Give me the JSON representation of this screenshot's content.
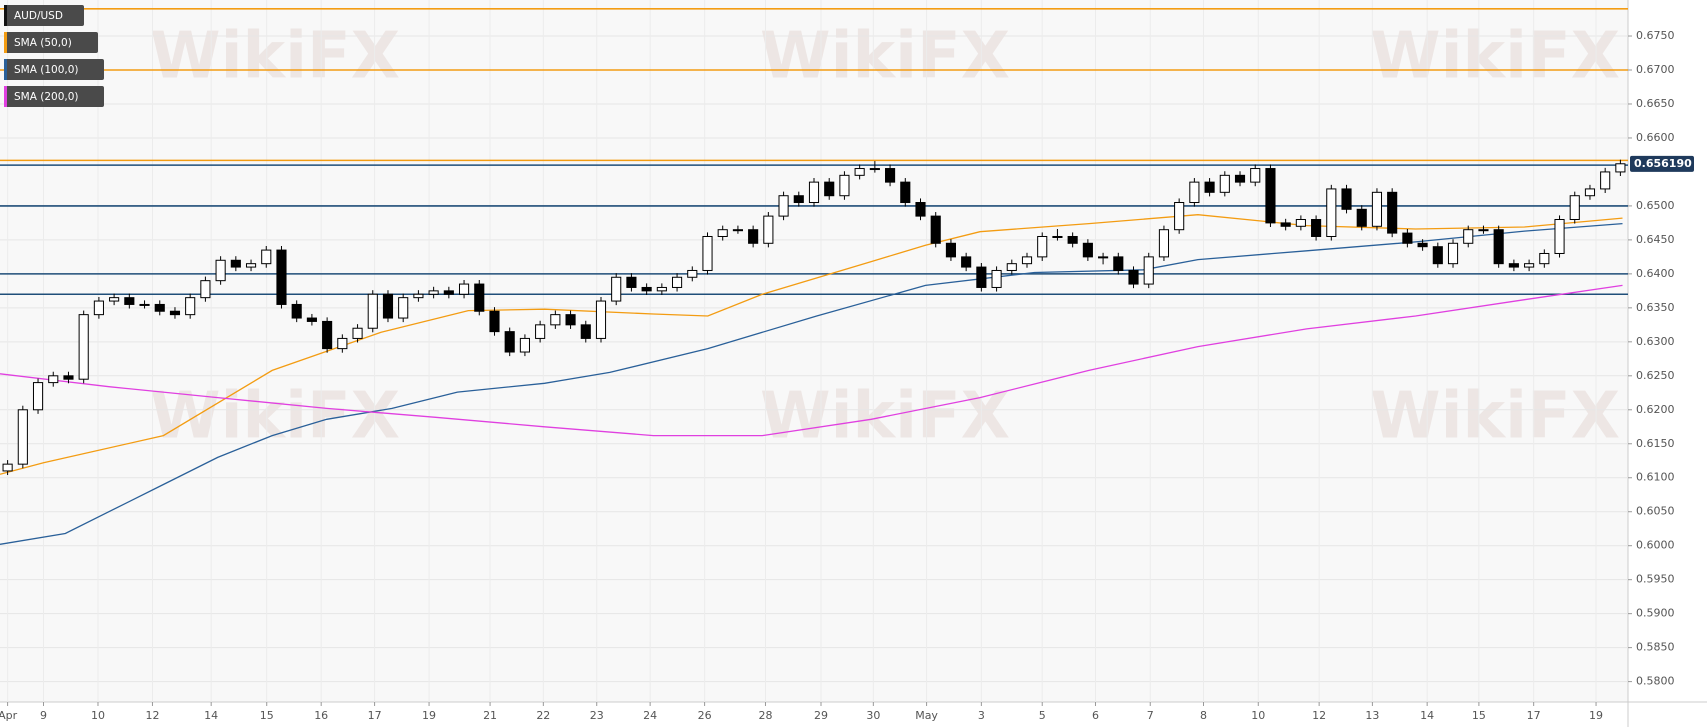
{
  "chart_data": {
    "type": "candlestick",
    "watermark": "WikiFX",
    "xlim": [
      -0.5,
      106.5
    ],
    "ylim": [
      0.577,
      0.6803
    ],
    "grid": true,
    "xticks": [
      {
        "value": 0,
        "label": "Apr"
      },
      {
        "value": 2.36,
        "label": "9"
      },
      {
        "value": 5.94,
        "label": "10"
      },
      {
        "value": 9.52,
        "label": "12"
      },
      {
        "value": 13.38,
        "label": "14"
      },
      {
        "value": 17.03,
        "label": "15"
      },
      {
        "value": 20.61,
        "label": "16"
      },
      {
        "value": 24.12,
        "label": "17"
      },
      {
        "value": 27.7,
        "label": "19"
      },
      {
        "value": 31.71,
        "label": "21"
      },
      {
        "value": 35.21,
        "label": "22"
      },
      {
        "value": 38.72,
        "label": "23"
      },
      {
        "value": 42.23,
        "label": "24"
      },
      {
        "value": 45.81,
        "label": "26"
      },
      {
        "value": 49.81,
        "label": "28"
      },
      {
        "value": 53.46,
        "label": "29"
      },
      {
        "value": 56.9,
        "label": "30"
      },
      {
        "value": 60.4,
        "label": "May"
      },
      {
        "value": 64.0,
        "label": "3"
      },
      {
        "value": 68.0,
        "label": "5"
      },
      {
        "value": 71.5,
        "label": "6"
      },
      {
        "value": 75.1,
        "label": "7"
      },
      {
        "value": 78.6,
        "label": "8"
      },
      {
        "value": 82.2,
        "label": "10"
      },
      {
        "value": 86.2,
        "label": "12"
      },
      {
        "value": 89.7,
        "label": "13"
      },
      {
        "value": 93.3,
        "label": "14"
      },
      {
        "value": 96.7,
        "label": "15"
      },
      {
        "value": 100.3,
        "label": "17"
      },
      {
        "value": 104.4,
        "label": "19"
      }
    ],
    "yticks": [
      {
        "value": 0.58,
        "label": "0.5800"
      },
      {
        "value": 0.585,
        "label": "0.5850"
      },
      {
        "value": 0.59,
        "label": "0.5900"
      },
      {
        "value": 0.595,
        "label": "0.5950"
      },
      {
        "value": 0.6,
        "label": "0.6000"
      },
      {
        "value": 0.605,
        "label": "0.6050"
      },
      {
        "value": 0.61,
        "label": "0.6100"
      },
      {
        "value": 0.615,
        "label": "0.6150"
      },
      {
        "value": 0.62,
        "label": "0.6200"
      },
      {
        "value": 0.625,
        "label": "0.6250"
      },
      {
        "value": 0.63,
        "label": "0.6300"
      },
      {
        "value": 0.635,
        "label": "0.6350"
      },
      {
        "value": 0.64,
        "label": "0.6400"
      },
      {
        "value": 0.645,
        "label": "0.6450"
      },
      {
        "value": 0.65,
        "label": "0.6500"
      },
      {
        "value": 0.66,
        "label": "0.6600"
      },
      {
        "value": 0.665,
        "label": "0.6650"
      },
      {
        "value": 0.67,
        "label": "0.6700"
      },
      {
        "value": 0.675,
        "label": "0.6750"
      }
    ],
    "levels": [
      {
        "value": 0.679,
        "color": "#f39c12"
      },
      {
        "value": 0.67,
        "color": "#f39c12"
      },
      {
        "value": 0.6567,
        "color": "#f39c12"
      },
      {
        "value": 0.656,
        "color": "#1f4e79"
      },
      {
        "value": 0.65,
        "color": "#1f4e79"
      },
      {
        "value": 0.64,
        "color": "#1f4e79"
      },
      {
        "value": 0.637,
        "color": "#1f4e79"
      }
    ],
    "last_price": {
      "value": 0.65619,
      "label": "0.656190"
    },
    "series": [
      {
        "name": "AUD/USD",
        "type": "candlestick",
        "color": "#000000",
        "ohlc": [
          [
            0.611,
            0.6126,
            0.6104,
            0.612
          ],
          [
            0.612,
            0.6206,
            0.6114,
            0.62
          ],
          [
            0.62,
            0.6246,
            0.6194,
            0.624
          ],
          [
            0.624,
            0.6256,
            0.6234,
            0.625
          ],
          [
            0.625,
            0.6256,
            0.6239,
            0.6245
          ],
          [
            0.6245,
            0.6346,
            0.6239,
            0.634
          ],
          [
            0.634,
            0.6366,
            0.6334,
            0.636
          ],
          [
            0.636,
            0.6371,
            0.6354,
            0.6365
          ],
          [
            0.6365,
            0.6371,
            0.6349,
            0.6355
          ],
          [
            0.6355,
            0.6361,
            0.6349,
            0.6355
          ],
          [
            0.6355,
            0.6361,
            0.6339,
            0.6345
          ],
          [
            0.6345,
            0.6351,
            0.6334,
            0.634
          ],
          [
            0.634,
            0.6371,
            0.6334,
            0.6365
          ],
          [
            0.6365,
            0.6396,
            0.6359,
            0.639
          ],
          [
            0.639,
            0.6426,
            0.6384,
            0.642
          ],
          [
            0.642,
            0.6426,
            0.6404,
            0.641
          ],
          [
            0.641,
            0.6421,
            0.6404,
            0.6415
          ],
          [
            0.6415,
            0.6441,
            0.6409,
            0.6435
          ],
          [
            0.6435,
            0.6441,
            0.6349,
            0.6355
          ],
          [
            0.6355,
            0.6361,
            0.6329,
            0.6335
          ],
          [
            0.6335,
            0.6341,
            0.6324,
            0.633
          ],
          [
            0.633,
            0.6336,
            0.6284,
            0.629
          ],
          [
            0.629,
            0.6311,
            0.6284,
            0.6305
          ],
          [
            0.6305,
            0.6326,
            0.6299,
            0.632
          ],
          [
            0.632,
            0.6376,
            0.6314,
            0.637
          ],
          [
            0.637,
            0.6376,
            0.6329,
            0.6335
          ],
          [
            0.6335,
            0.6371,
            0.6329,
            0.6365
          ],
          [
            0.6365,
            0.6376,
            0.6359,
            0.637
          ],
          [
            0.637,
            0.6381,
            0.6364,
            0.6375
          ],
          [
            0.6375,
            0.6381,
            0.6364,
            0.637
          ],
          [
            0.637,
            0.6391,
            0.6364,
            0.6385
          ],
          [
            0.6385,
            0.6391,
            0.6339,
            0.6345
          ],
          [
            0.6345,
            0.6351,
            0.6309,
            0.6315
          ],
          [
            0.6315,
            0.6321,
            0.6279,
            0.6285
          ],
          [
            0.6285,
            0.6311,
            0.6279,
            0.6305
          ],
          [
            0.6305,
            0.6331,
            0.6299,
            0.6325
          ],
          [
            0.6325,
            0.6346,
            0.6319,
            0.634
          ],
          [
            0.634,
            0.6346,
            0.6319,
            0.6325
          ],
          [
            0.6325,
            0.6331,
            0.6299,
            0.6305
          ],
          [
            0.6305,
            0.6366,
            0.6299,
            0.636
          ],
          [
            0.636,
            0.6401,
            0.6354,
            0.6395
          ],
          [
            0.6395,
            0.6401,
            0.6374,
            0.638
          ],
          [
            0.638,
            0.6386,
            0.6369,
            0.6375
          ],
          [
            0.6375,
            0.6386,
            0.6369,
            0.638
          ],
          [
            0.638,
            0.6401,
            0.6374,
            0.6395
          ],
          [
            0.6395,
            0.6411,
            0.6389,
            0.6405
          ],
          [
            0.6405,
            0.6461,
            0.6399,
            0.6455
          ],
          [
            0.6455,
            0.6471,
            0.6449,
            0.6465
          ],
          [
            0.6465,
            0.6471,
            0.6459,
            0.6465
          ],
          [
            0.6465,
            0.6471,
            0.6439,
            0.6445
          ],
          [
            0.6445,
            0.6491,
            0.6439,
            0.6485
          ],
          [
            0.6485,
            0.6521,
            0.6479,
            0.6515
          ],
          [
            0.6515,
            0.6521,
            0.6499,
            0.6505
          ],
          [
            0.6505,
            0.6541,
            0.6499,
            0.6535
          ],
          [
            0.6535,
            0.6541,
            0.6509,
            0.6515
          ],
          [
            0.6515,
            0.6551,
            0.6509,
            0.6545
          ],
          [
            0.6545,
            0.6561,
            0.6539,
            0.6555
          ],
          [
            0.6555,
            0.6566,
            0.6549,
            0.6555
          ],
          [
            0.6555,
            0.6561,
            0.6529,
            0.6535
          ],
          [
            0.6535,
            0.6541,
            0.6499,
            0.6505
          ],
          [
            0.6505,
            0.6511,
            0.6479,
            0.6485
          ],
          [
            0.6485,
            0.6491,
            0.6439,
            0.6445
          ],
          [
            0.6445,
            0.6451,
            0.6419,
            0.6425
          ],
          [
            0.6425,
            0.6431,
            0.6404,
            0.641
          ],
          [
            0.641,
            0.6416,
            0.6374,
            0.638
          ],
          [
            0.638,
            0.6411,
            0.6374,
            0.6405
          ],
          [
            0.6405,
            0.6421,
            0.6399,
            0.6415
          ],
          [
            0.6415,
            0.6431,
            0.6409,
            0.6425
          ],
          [
            0.6425,
            0.6461,
            0.6419,
            0.6455
          ],
          [
            0.6455,
            0.6466,
            0.6449,
            0.6455
          ],
          [
            0.6455,
            0.6461,
            0.6439,
            0.6445
          ],
          [
            0.6445,
            0.6451,
            0.6419,
            0.6425
          ],
          [
            0.6425,
            0.6431,
            0.6414,
            0.6425
          ],
          [
            0.6425,
            0.6431,
            0.6399,
            0.6405
          ],
          [
            0.6405,
            0.6411,
            0.6379,
            0.6385
          ],
          [
            0.6385,
            0.6431,
            0.6379,
            0.6425
          ],
          [
            0.6425,
            0.6471,
            0.6419,
            0.6465
          ],
          [
            0.6465,
            0.6511,
            0.6459,
            0.6505
          ],
          [
            0.6505,
            0.6541,
            0.6499,
            0.6535
          ],
          [
            0.6535,
            0.6541,
            0.6514,
            0.652
          ],
          [
            0.652,
            0.6551,
            0.6514,
            0.6545
          ],
          [
            0.6545,
            0.6551,
            0.6529,
            0.6535
          ],
          [
            0.6535,
            0.6561,
            0.6529,
            0.6555
          ],
          [
            0.6555,
            0.6561,
            0.6469,
            0.6475
          ],
          [
            0.6475,
            0.6481,
            0.6464,
            0.647
          ],
          [
            0.647,
            0.6486,
            0.6464,
            0.648
          ],
          [
            0.648,
            0.6486,
            0.6449,
            0.6455
          ],
          [
            0.6455,
            0.6531,
            0.6449,
            0.6525
          ],
          [
            0.6525,
            0.6531,
            0.6489,
            0.6495
          ],
          [
            0.6495,
            0.6501,
            0.6464,
            0.647
          ],
          [
            0.647,
            0.6526,
            0.6464,
            0.652
          ],
          [
            0.652,
            0.6526,
            0.6454,
            0.646
          ],
          [
            0.646,
            0.6466,
            0.6439,
            0.6445
          ],
          [
            0.6445,
            0.6451,
            0.6434,
            0.644
          ],
          [
            0.644,
            0.6446,
            0.6409,
            0.6415
          ],
          [
            0.6415,
            0.6451,
            0.6409,
            0.6445
          ],
          [
            0.6445,
            0.6471,
            0.6439,
            0.6465
          ],
          [
            0.6465,
            0.6471,
            0.6459,
            0.6465
          ],
          [
            0.6465,
            0.6471,
            0.6409,
            0.6415
          ],
          [
            0.6415,
            0.6421,
            0.6404,
            0.641
          ],
          [
            0.641,
            0.6421,
            0.6404,
            0.6415
          ],
          [
            0.6415,
            0.6436,
            0.6409,
            0.643
          ],
          [
            0.643,
            0.6486,
            0.6424,
            0.648
          ],
          [
            0.648,
            0.6521,
            0.6474,
            0.6515
          ],
          [
            0.6515,
            0.6531,
            0.6509,
            0.6525
          ],
          [
            0.6525,
            0.6556,
            0.6519,
            0.655
          ],
          [
            0.655,
            0.6568,
            0.6544,
            0.6562
          ]
        ]
      },
      {
        "name": "SMA (50,0)",
        "type": "line",
        "color": "#f39c12",
        "x": [
          -0.5,
          2.36,
          10.24,
          17.39,
          24.55,
          30.28,
          35.29,
          42.44,
          46.02,
          49.6,
          56.76,
          60.33,
          63.91,
          71.07,
          78.23,
          85.38,
          92.54,
          99.7,
          106.14
        ],
        "values": [
          0.6105,
          0.6122,
          0.6162,
          0.6258,
          0.6314,
          0.6346,
          0.6348,
          0.6341,
          0.6338,
          0.637,
          0.6418,
          0.6442,
          0.6462,
          0.6474,
          0.6487,
          0.6471,
          0.6466,
          0.6469,
          0.6482
        ]
      },
      {
        "name": "SMA (100,0)",
        "type": "line",
        "color": "#2a6099",
        "x": [
          -0.5,
          3.79,
          6.66,
          10.24,
          13.81,
          17.39,
          20.97,
          25.27,
          29.56,
          35.29,
          39.58,
          46.02,
          53.18,
          60.33,
          67.49,
          74.65,
          78.23,
          85.38,
          92.54,
          99.7,
          106.14
        ],
        "values": [
          0.6002,
          0.6018,
          0.605,
          0.609,
          0.613,
          0.6162,
          0.6186,
          0.6202,
          0.6226,
          0.6239,
          0.6255,
          0.629,
          0.6338,
          0.6383,
          0.6402,
          0.6406,
          0.6421,
          0.6434,
          0.6447,
          0.6463,
          0.6474
        ]
      },
      {
        "name": "SMA (200,0)",
        "type": "line",
        "color": "#e040e0",
        "x": [
          -0.5,
          6.66,
          13.81,
          20.97,
          28.13,
          35.29,
          42.44,
          49.6,
          56.76,
          63.91,
          71.07,
          78.23,
          85.38,
          92.54,
          99.7,
          106.14
        ],
        "values": [
          0.6253,
          0.6234,
          0.6218,
          0.6202,
          0.6189,
          0.6175,
          0.6162,
          0.6162,
          0.6186,
          0.6218,
          0.6258,
          0.6293,
          0.6319,
          0.6338,
          0.6362,
          0.6383
        ]
      }
    ]
  }
}
